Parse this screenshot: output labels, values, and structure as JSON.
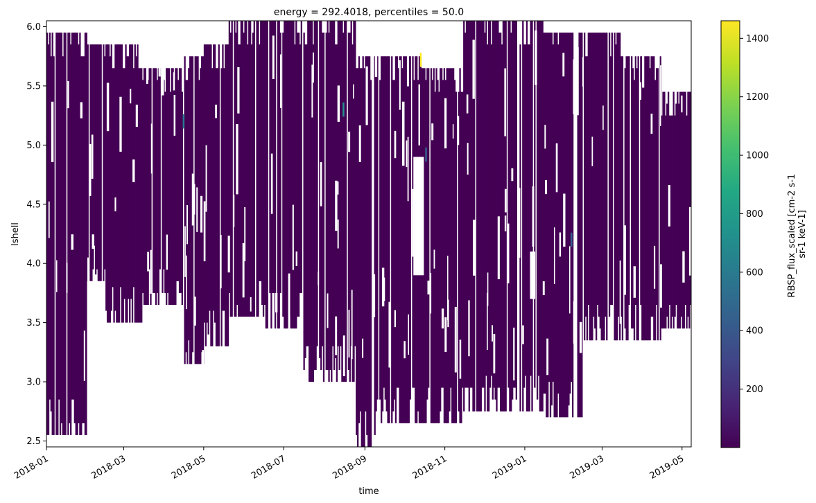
{
  "chart_data": {
    "type": "heatmap",
    "title": "energy = 292.4018, percentiles = 50.0",
    "xlabel": "time",
    "ylabel": "lshell",
    "x_ticks": [
      "2018-01",
      "2018-03",
      "2018-05",
      "2018-07",
      "2018-09",
      "2018-11",
      "2019-01",
      "2019-03",
      "2019-05"
    ],
    "xlim": [
      "2018-01-01",
      "2019-05-08"
    ],
    "y_ticks": [
      "2.5",
      "3.0",
      "3.5",
      "4.0",
      "4.5",
      "5.0",
      "5.5",
      "6.0"
    ],
    "ylim": [
      2.45,
      6.05
    ],
    "colorbar": {
      "label_lines": [
        "RBSP_flux_scaled [cm-2 s-1",
        "sr-1 keV-1]"
      ],
      "ticks": [
        "200",
        "400",
        "600",
        "800",
        "1000",
        "1200",
        "1400"
      ],
      "range": [
        0,
        1460
      ],
      "colormap": "viridis"
    },
    "coverage": {
      "note_values": "median flux mostly below 100 across covered bins",
      "segments": [
        {
          "start": "2018-01-01",
          "end": "2018-02-01",
          "lmin": 2.55,
          "lmax": 5.95
        },
        {
          "start": "2018-02-01",
          "end": "2018-02-15",
          "lmin": 3.85,
          "lmax": 5.85
        },
        {
          "start": "2018-02-15",
          "end": "2018-03-15",
          "lmin": 3.5,
          "lmax": 5.85
        },
        {
          "start": "2018-03-15",
          "end": "2018-04-15",
          "lmin": 3.65,
          "lmax": 5.65
        },
        {
          "start": "2018-04-15",
          "end": "2018-05-01",
          "lmin": 3.15,
          "lmax": 5.75
        },
        {
          "start": "2018-05-01",
          "end": "2018-05-20",
          "lmin": 3.3,
          "lmax": 5.85
        },
        {
          "start": "2018-05-20",
          "end": "2018-06-15",
          "lmin": 3.55,
          "lmax": 6.05
        },
        {
          "start": "2018-06-15",
          "end": "2018-07-15",
          "lmin": 3.45,
          "lmax": 6.05
        },
        {
          "start": "2018-07-15",
          "end": "2018-08-25",
          "lmin": 3.0,
          "lmax": 6.05
        },
        {
          "start": "2018-08-25",
          "end": "2018-09-10",
          "lmin": 2.45,
          "lmax": 5.75
        },
        {
          "start": "2018-09-10",
          "end": "2018-10-15",
          "lmin": 2.65,
          "lmax": 5.75
        },
        {
          "start": "2018-10-15",
          "end": "2018-11-15",
          "lmin": 2.65,
          "lmax": 5.65
        },
        {
          "start": "2018-11-15",
          "end": "2019-01-15",
          "lmin": 2.75,
          "lmax": 6.05
        },
        {
          "start": "2019-01-15",
          "end": "2019-02-15",
          "lmin": 2.7,
          "lmax": 5.95
        },
        {
          "start": "2019-02-15",
          "end": "2019-03-15",
          "lmin": 3.35,
          "lmax": 5.95
        },
        {
          "start": "2019-03-15",
          "end": "2019-04-15",
          "lmin": 3.35,
          "lmax": 5.75
        },
        {
          "start": "2019-04-15",
          "end": "2019-05-08",
          "lmin": 3.45,
          "lmax": 5.45
        }
      ],
      "gaps": [
        {
          "start": "2018-02-01",
          "end": "2018-02-15",
          "lmin": 2.45,
          "lmax": 3.85
        },
        {
          "start": "2018-10-08",
          "end": "2018-10-16",
          "lmin": 3.9,
          "lmax": 4.9
        },
        {
          "start": "2019-01-05",
          "end": "2019-01-09",
          "lmin": 3.7,
          "lmax": 4.1
        }
      ],
      "hotspots": [
        {
          "date": "2018-10-13",
          "lshell": 5.72,
          "value": 1450
        },
        {
          "date": "2018-08-15",
          "lshell": 5.3,
          "value": 700
        },
        {
          "date": "2018-04-15",
          "lshell": 5.2,
          "value": 650
        },
        {
          "date": "2018-10-17",
          "lshell": 4.92,
          "value": 500
        },
        {
          "date": "2019-02-05",
          "lshell": 4.2,
          "value": 420
        }
      ]
    }
  }
}
